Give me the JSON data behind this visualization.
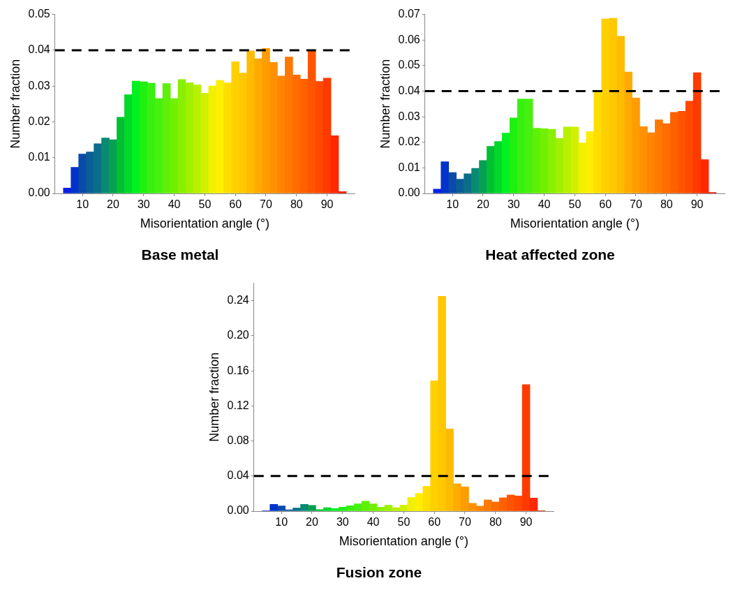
{
  "chart_data": [
    {
      "type": "histogram",
      "title": "Base metal",
      "xlabel": "Misorientation angle (°)",
      "ylabel": "Number fraction",
      "bins": [
        3.75,
        6.25,
        8.75,
        11.25,
        13.75,
        16.25,
        18.75,
        21.25,
        23.75,
        26.25,
        28.75,
        31.25,
        33.75,
        36.25,
        38.75,
        41.25,
        43.75,
        46.25,
        48.75,
        51.25,
        53.75,
        56.25,
        58.75,
        61.25,
        63.75,
        66.25,
        68.75,
        71.25,
        73.75,
        76.25,
        78.75,
        81.25,
        83.75,
        86.25,
        88.75,
        91.25,
        93.75,
        96.25
      ],
      "values": [
        0.0015,
        0.0073,
        0.011,
        0.0116,
        0.0139,
        0.0155,
        0.015,
        0.0213,
        0.0276,
        0.0314,
        0.0312,
        0.0308,
        0.0265,
        0.0307,
        0.0265,
        0.0318,
        0.0309,
        0.0303,
        0.028,
        0.03,
        0.0316,
        0.0309,
        0.0368,
        0.0336,
        0.0398,
        0.0376,
        0.0405,
        0.0366,
        0.0328,
        0.0381,
        0.0331,
        0.0319,
        0.0398,
        0.0313,
        0.0322,
        0.0161,
        0.0005
      ],
      "colors": [
        "#0a1ee6",
        "#0033cc",
        "#0a4aaa",
        "#0a5e96",
        "#0a6e88",
        "#098a72",
        "#06a052",
        "#00c032",
        "#00d82a",
        "#00f020",
        "#20f010",
        "#38f010",
        "#48f010",
        "#5ef008",
        "#70f000",
        "#88f000",
        "#a0f000",
        "#b8f000",
        "#d0f000",
        "#f0f000",
        "#ffee00",
        "#ffdd00",
        "#ffd000",
        "#ffc800",
        "#ffbb00",
        "#ffaa00",
        "#ff9c00",
        "#ff9000",
        "#ff8400",
        "#ff7800",
        "#ff6c00",
        "#ff6000",
        "#ff5400",
        "#ff4800",
        "#ff3a00",
        "#ff2800",
        "#ee1a00"
      ],
      "xlim": [
        1,
        99
      ],
      "xticks": [
        10,
        20,
        30,
        40,
        50,
        60,
        70,
        80,
        90
      ],
      "ylim": [
        0,
        0.05
      ],
      "yticks": [
        {
          "value": 0,
          "label": "0.00"
        },
        {
          "value": 0.01,
          "label": "0.01"
        },
        {
          "value": 0.02,
          "label": "0.02"
        },
        {
          "value": 0.03,
          "label": "0.03"
        },
        {
          "value": 0.04,
          "label": "0.04"
        },
        {
          "value": 0.05,
          "label": "0.05"
        }
      ],
      "ref_lines": [
        {
          "axis": "y",
          "value": 0.04,
          "color": "#000000",
          "line_style": "dashed"
        }
      ]
    },
    {
      "type": "histogram",
      "title": "Heat affected zone",
      "xlabel": "Misorientation angle (°)",
      "ylabel": "Number fraction",
      "bins": [
        3.75,
        6.25,
        8.75,
        11.25,
        13.75,
        16.25,
        18.75,
        21.25,
        23.75,
        26.25,
        28.75,
        31.25,
        33.75,
        36.25,
        38.75,
        41.25,
        43.75,
        46.25,
        48.75,
        51.25,
        53.75,
        56.25,
        58.75,
        61.25,
        63.75,
        66.25,
        68.75,
        71.25,
        73.75,
        76.25,
        78.75,
        81.25,
        83.75,
        86.25,
        88.75,
        91.25,
        93.75,
        96.25
      ],
      "values": [
        0.0017,
        0.0124,
        0.0082,
        0.0056,
        0.0077,
        0.0098,
        0.0129,
        0.0184,
        0.0203,
        0.0236,
        0.0295,
        0.0369,
        0.0369,
        0.0255,
        0.0253,
        0.0251,
        0.0215,
        0.026,
        0.026,
        0.0198,
        0.0242,
        0.04,
        0.0682,
        0.0685,
        0.0615,
        0.0475,
        0.0373,
        0.0261,
        0.0237,
        0.0288,
        0.0273,
        0.0317,
        0.0321,
        0.0361,
        0.0472,
        0.0132,
        0.0004
      ],
      "colors": [
        "#0a1ee6",
        "#0033cc",
        "#0a4aaa",
        "#0a5e96",
        "#0a6e88",
        "#098a72",
        "#06a052",
        "#00c032",
        "#00d82a",
        "#00f020",
        "#20f010",
        "#38f010",
        "#48f010",
        "#5ef008",
        "#70f000",
        "#88f000",
        "#a0f000",
        "#b8f000",
        "#d0f000",
        "#f0f000",
        "#ffee00",
        "#ffdd00",
        "#ffd000",
        "#ffc800",
        "#ffbb00",
        "#ffaa00",
        "#ff9c00",
        "#ff9000",
        "#ff8400",
        "#ff7800",
        "#ff6c00",
        "#ff6000",
        "#ff5400",
        "#ff4800",
        "#ff3a00",
        "#ff2800",
        "#ee1a00"
      ],
      "xlim": [
        1,
        99
      ],
      "xticks": [
        10,
        20,
        30,
        40,
        50,
        60,
        70,
        80,
        90
      ],
      "ylim": [
        0,
        0.07
      ],
      "yticks": [
        {
          "value": 0,
          "label": "0.00"
        },
        {
          "value": 0.01,
          "label": "0.01"
        },
        {
          "value": 0.02,
          "label": "0.02"
        },
        {
          "value": 0.03,
          "label": "0.03"
        },
        {
          "value": 0.04,
          "label": "0.04"
        },
        {
          "value": 0.05,
          "label": "0.05"
        },
        {
          "value": 0.06,
          "label": "0.06"
        },
        {
          "value": 0.07,
          "label": "0.07"
        }
      ],
      "ref_lines": [
        {
          "axis": "y",
          "value": 0.04,
          "color": "#000000",
          "line_style": "dashed"
        }
      ]
    },
    {
      "type": "histogram",
      "title": "Fusion zone",
      "xlabel": "Misorientation angle (°)",
      "ylabel": "Number fraction",
      "bins": [
        3.75,
        6.25,
        8.75,
        11.25,
        13.75,
        16.25,
        18.75,
        21.25,
        23.75,
        26.25,
        28.75,
        31.25,
        33.75,
        36.25,
        38.75,
        41.25,
        43.75,
        46.25,
        48.75,
        51.25,
        53.75,
        56.25,
        58.75,
        61.25,
        63.75,
        66.25,
        68.75,
        71.25,
        73.75,
        76.25,
        78.75,
        81.25,
        83.75,
        86.25,
        88.75,
        91.25,
        93.75,
        96.25
      ],
      "values": [
        0.0003,
        0.0077,
        0.006,
        0.0015,
        0.0036,
        0.0077,
        0.0065,
        0.0018,
        0.0039,
        0.003,
        0.0045,
        0.0062,
        0.0083,
        0.0113,
        0.0083,
        0.0045,
        0.0068,
        0.0039,
        0.0068,
        0.0155,
        0.0202,
        0.0283,
        0.1487,
        0.245,
        0.0937,
        0.0312,
        0.0277,
        0.0089,
        0.0057,
        0.0128,
        0.0104,
        0.0152,
        0.0184,
        0.0173,
        0.1443,
        0.0149,
        0.0003
      ],
      "colors": [
        "#0a1ee6",
        "#0033cc",
        "#0a4aaa",
        "#0a5e96",
        "#0a6e88",
        "#098a72",
        "#06a052",
        "#00c032",
        "#00d82a",
        "#00f020",
        "#20f010",
        "#38f010",
        "#48f010",
        "#5ef008",
        "#70f000",
        "#88f000",
        "#a0f000",
        "#b8f000",
        "#d0f000",
        "#f0f000",
        "#ffee00",
        "#ffdd00",
        "#ffd000",
        "#ffc800",
        "#ffbb00",
        "#ffaa00",
        "#ff9c00",
        "#ff9000",
        "#ff8400",
        "#ff7800",
        "#ff6c00",
        "#ff6000",
        "#ff5400",
        "#ff4800",
        "#ff3a00",
        "#ff2800",
        "#ee1a00"
      ],
      "xlim": [
        1,
        99
      ],
      "xticks": [
        10,
        20,
        30,
        40,
        50,
        60,
        70,
        80,
        90
      ],
      "ylim": [
        0,
        0.26
      ],
      "yticks": [
        {
          "value": 0,
          "label": "0.00"
        },
        {
          "value": 0.04,
          "label": "0.04"
        },
        {
          "value": 0.08,
          "label": "0.08"
        },
        {
          "value": 0.12,
          "label": "0.12"
        },
        {
          "value": 0.16,
          "label": "0.16"
        },
        {
          "value": 0.2,
          "label": "0.20"
        },
        {
          "value": 0.24,
          "label": "0.24"
        }
      ],
      "ref_lines": [
        {
          "axis": "y",
          "value": 0.04,
          "color": "#000000",
          "line_style": "dashed"
        }
      ]
    }
  ]
}
